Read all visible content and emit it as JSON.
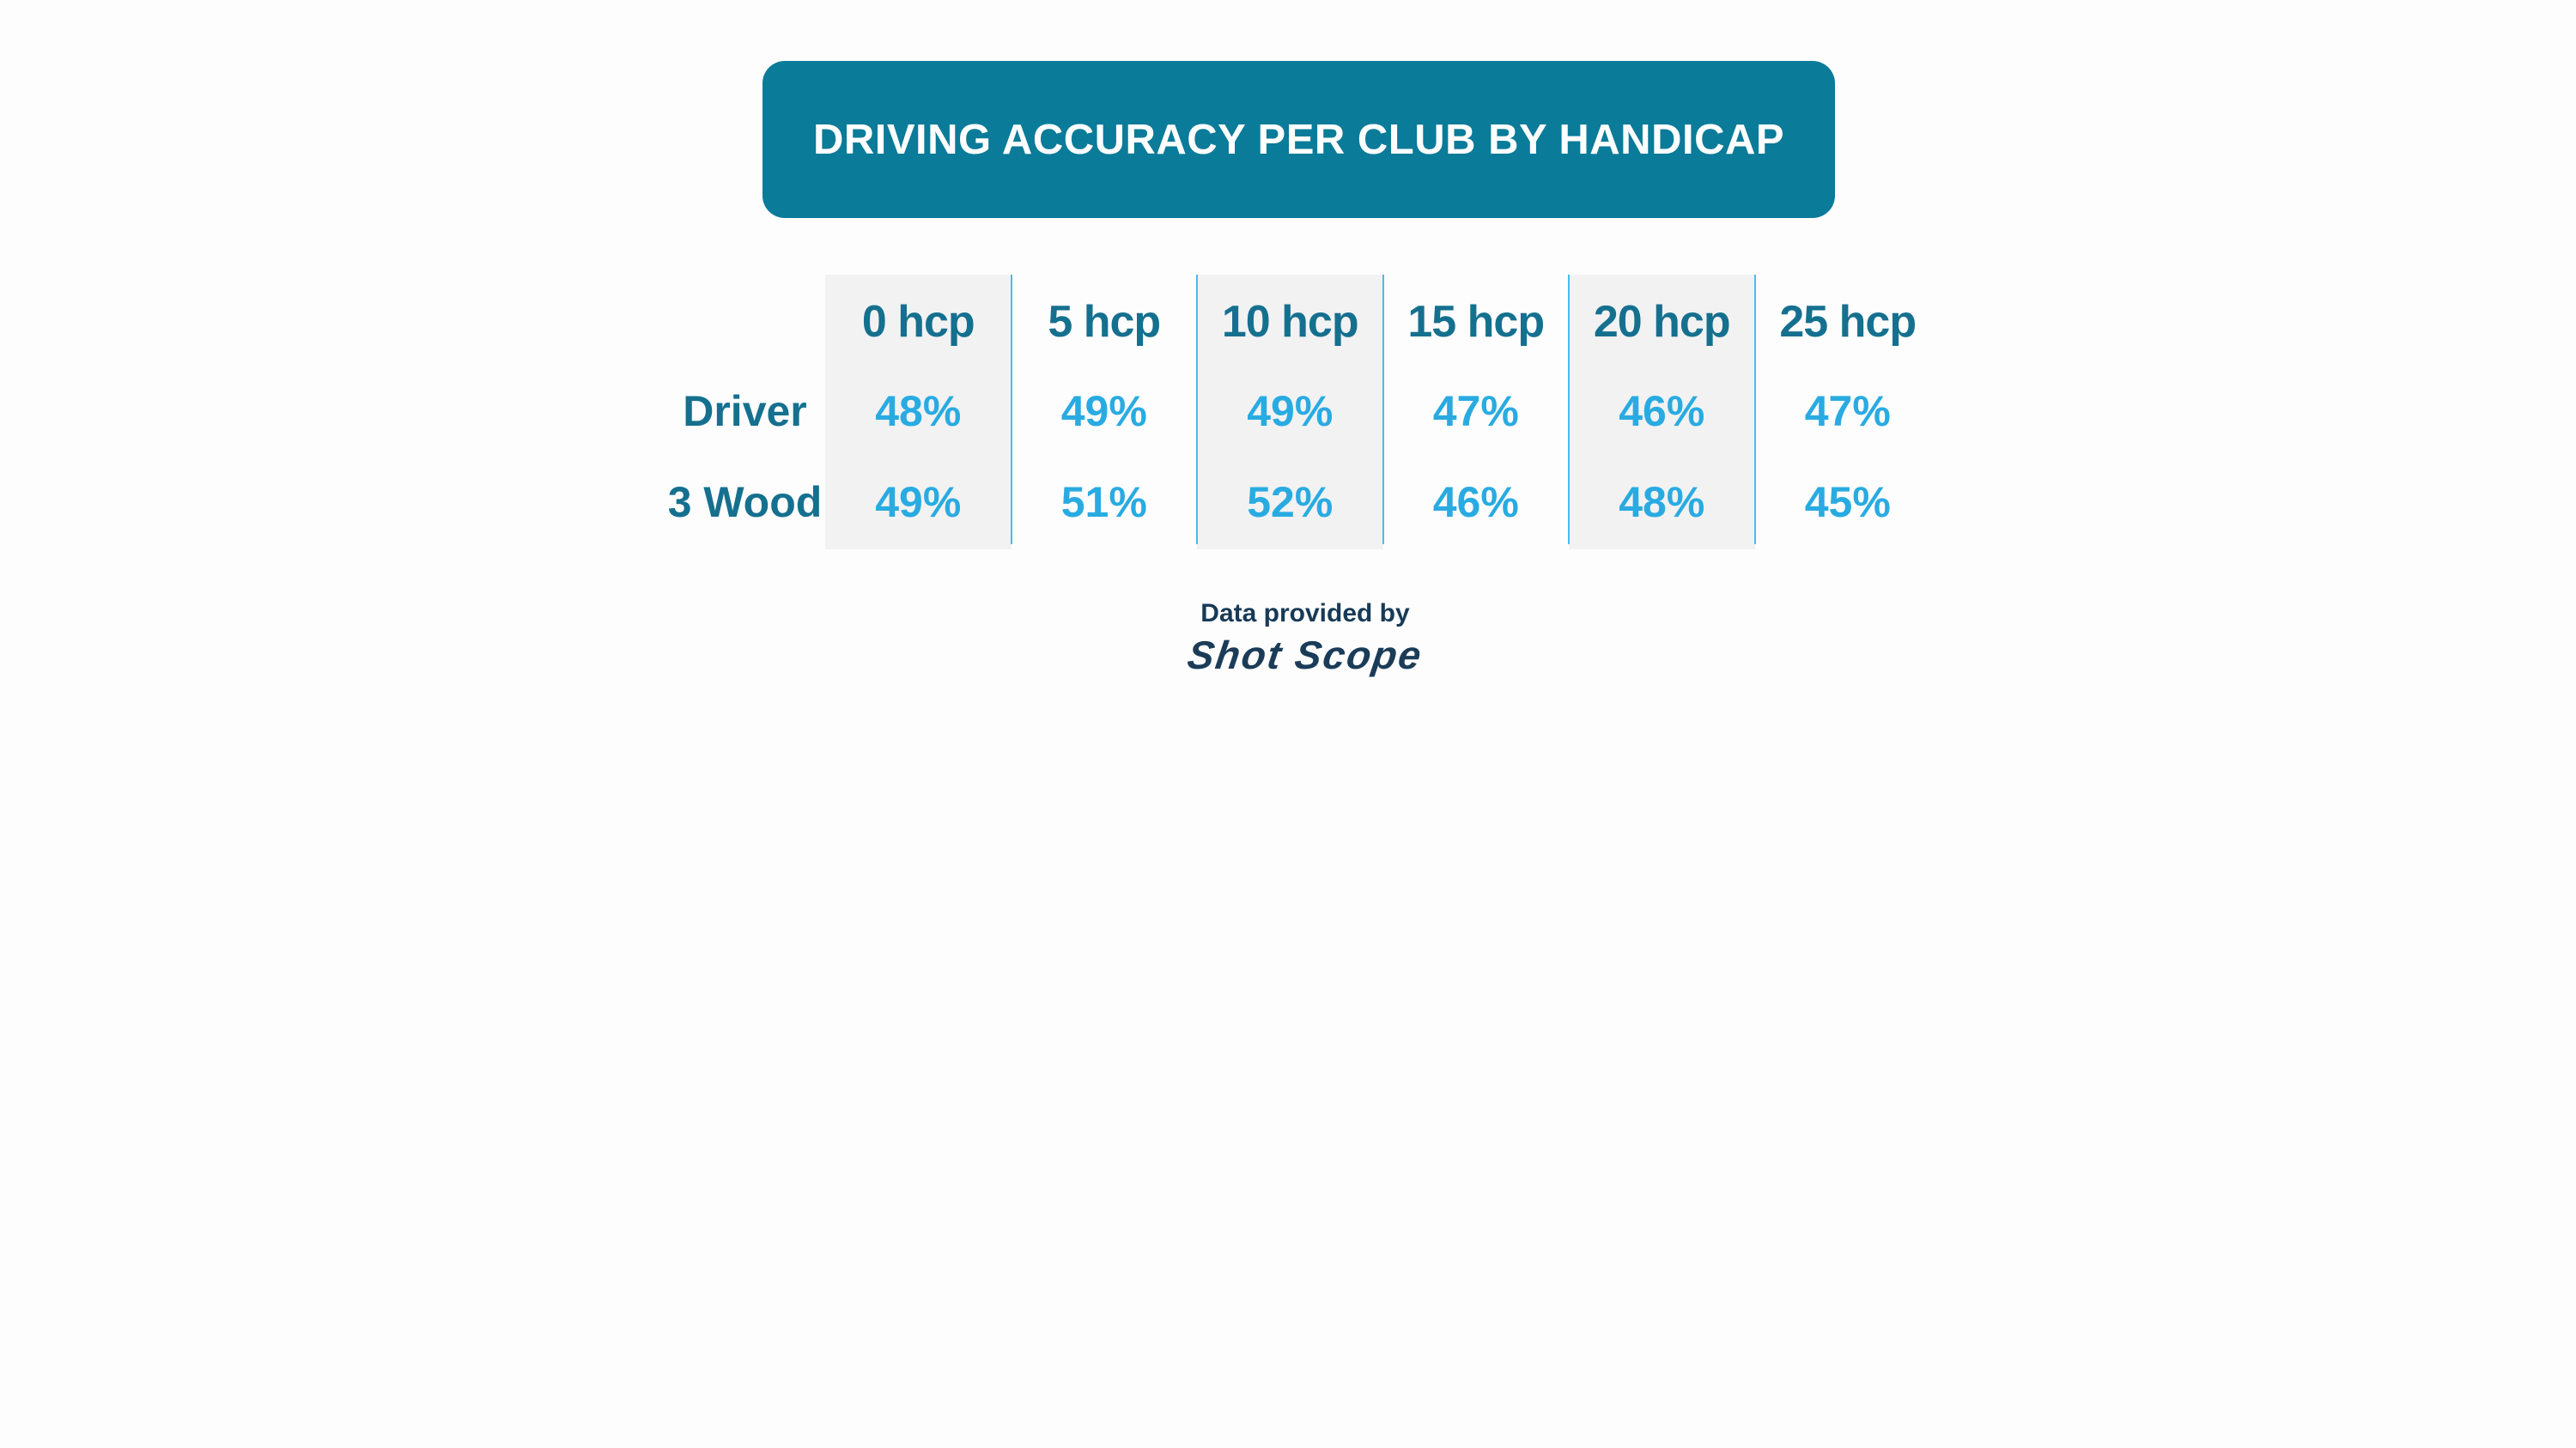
{
  "title": "DRIVING ACCURACY PER CLUB BY HANDICAP",
  "table": {
    "columns": [
      "0 hcp",
      "5 hcp",
      "10 hcp",
      "15 hcp",
      "20 hcp",
      "25 hcp"
    ],
    "rows": [
      {
        "label": "Driver",
        "values": [
          "48%",
          "49%",
          "49%",
          "47%",
          "46%",
          "47%"
        ]
      },
      {
        "label": "3 Wood",
        "values": [
          "49%",
          "51%",
          "52%",
          "46%",
          "48%",
          "45%"
        ]
      }
    ]
  },
  "footer": {
    "provided_by": "Data provided by",
    "brand": "Shot Scope"
  },
  "colors": {
    "banner_teal": "#0a7b99",
    "table_teal": "#15708f",
    "value_blue": "#29abe2",
    "column_shade_gray": "#f2f2f2",
    "divider_blue": "#45bdec",
    "footer_navy": "#1b3c58",
    "background": "#fdfdfd",
    "title_text": "#ffffff"
  },
  "chart_data": {
    "type": "table",
    "title": "DRIVING ACCURACY PER CLUB BY HANDICAP",
    "categories": [
      "0 hcp",
      "5 hcp",
      "10 hcp",
      "15 hcp",
      "20 hcp",
      "25 hcp"
    ],
    "series": [
      {
        "name": "Driver",
        "values": [
          48,
          49,
          49,
          47,
          46,
          47
        ]
      },
      {
        "name": "3 Wood",
        "values": [
          49,
          51,
          52,
          46,
          48,
          45
        ]
      }
    ],
    "unit": "%",
    "source_note": "Data provided by Shot Scope",
    "layout_hints": {
      "shaded_columns": [
        "0 hcp",
        "10 hcp",
        "20 hcp"
      ],
      "grid": "vertical dividers between columns only"
    }
  }
}
